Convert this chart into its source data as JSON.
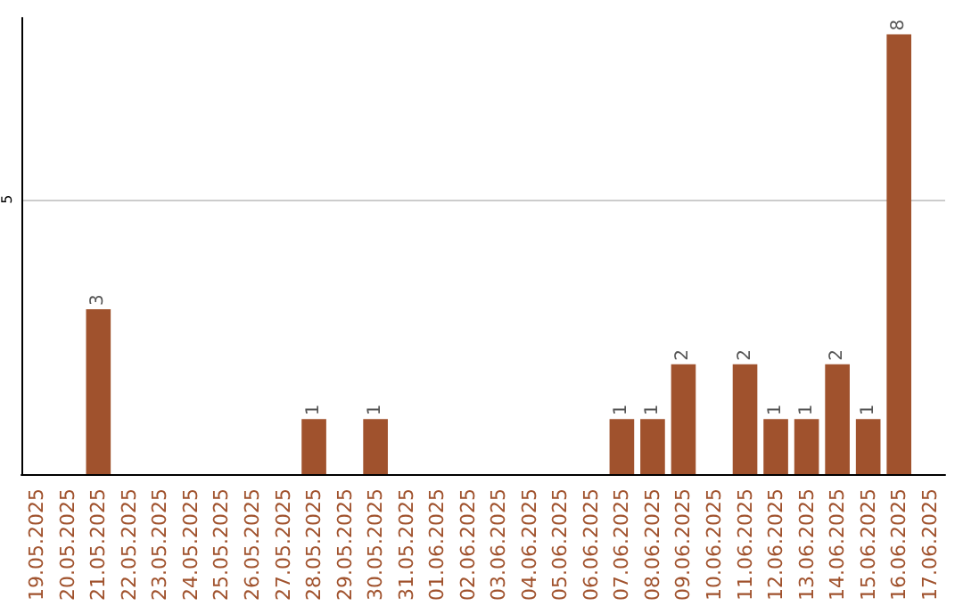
{
  "chart_data": {
    "type": "bar",
    "categories": [
      "19.05.2025",
      "20.05.2025",
      "21.05.2025",
      "22.05.2025",
      "23.05.2025",
      "24.05.2025",
      "25.05.2025",
      "26.05.2025",
      "27.05.2025",
      "28.05.2025",
      "29.05.2025",
      "30.05.2025",
      "31.05.2025",
      "01.06.2025",
      "02.06.2025",
      "03.06.2025",
      "04.06.2025",
      "05.06.2025",
      "06.06.2025",
      "07.06.2025",
      "08.06.2025",
      "09.06.2025",
      "10.06.2025",
      "11.06.2025",
      "12.06.2025",
      "13.06.2025",
      "14.06.2025",
      "15.06.2025",
      "16.06.2025",
      "17.06.2025"
    ],
    "values": [
      null,
      null,
      3,
      null,
      null,
      null,
      null,
      null,
      null,
      1,
      null,
      1,
      null,
      null,
      null,
      null,
      null,
      null,
      null,
      1,
      1,
      2,
      null,
      2,
      1,
      1,
      2,
      1,
      8,
      null
    ],
    "color": "#a0522d",
    "ylim": [
      0,
      8.3
    ],
    "yticks": [
      5
    ],
    "grid": "y",
    "data_labels": true
  }
}
